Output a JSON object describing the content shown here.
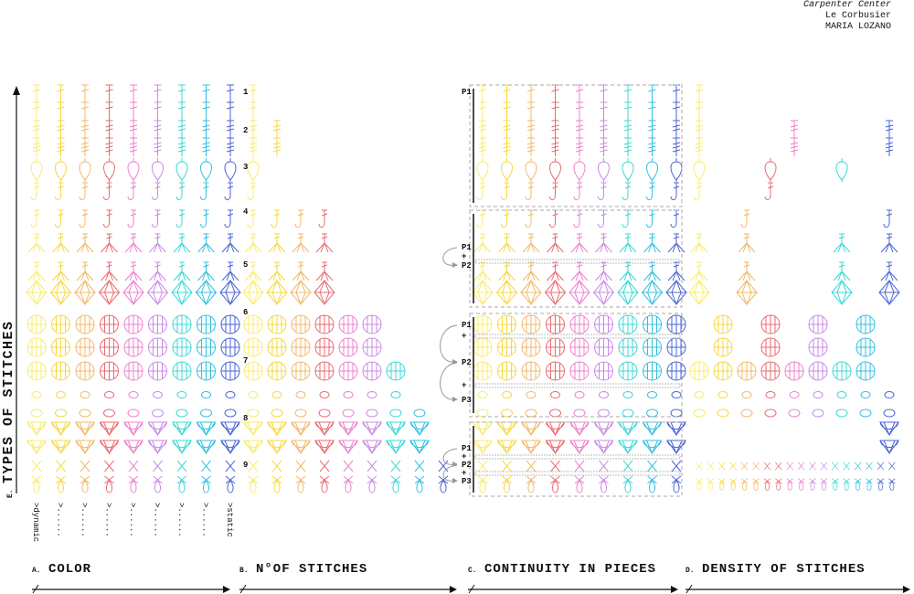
{
  "credits": [
    "Carpenter Center",
    "Le Corbusier",
    "MARIA LOZANO"
  ],
  "axis_label": {
    "prefix": "E.",
    "text": "TYPES OF STITCHES"
  },
  "row_numbers": [
    "1",
    "2",
    "3",
    "4",
    "5",
    "6",
    "7",
    "8",
    "9"
  ],
  "color_scale": [
    ">dynamic",
    ">......",
    ">......",
    ">......",
    ">......",
    ">......",
    ">......",
    ">......",
    ">static"
  ],
  "sections": [
    {
      "letter": "A.",
      "title": "COLOR"
    },
    {
      "letter": "B.",
      "title": "N°OF STITCHES"
    },
    {
      "letter": "C.",
      "title": "CONTINUITY IN PIECES"
    },
    {
      "letter": "D.",
      "title": "DENSITY OF STITCHES"
    }
  ],
  "piece_labels": [
    [
      "P1"
    ],
    [
      "P1",
      "+",
      "P2"
    ],
    [
      "P1",
      "+",
      "P2",
      "+",
      "P3"
    ],
    [
      "P1",
      "+",
      "P2",
      "+",
      "P3"
    ]
  ]
}
